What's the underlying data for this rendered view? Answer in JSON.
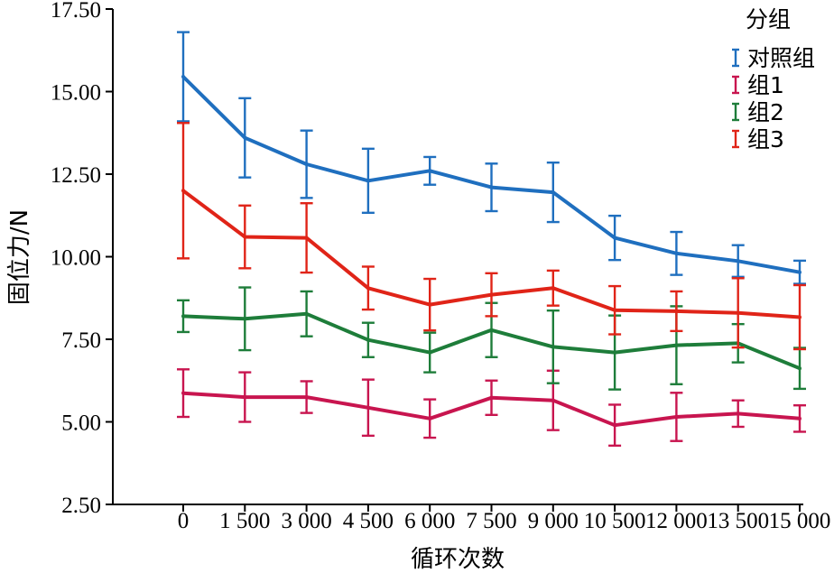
{
  "chart_data": {
    "type": "line",
    "title": "",
    "xlabel": "循环次数",
    "ylabel": "固位力/N",
    "x": [
      0,
      1500,
      3000,
      4500,
      6000,
      7500,
      9000,
      10500,
      12000,
      13500,
      15000
    ],
    "x_tick_labels": [
      "0",
      "1 500",
      "3 000",
      "4 500",
      "6 000",
      "7 500",
      "9 000",
      "10 500",
      "12 000",
      "13 500",
      "15 000"
    ],
    "y_ticks": [
      2.5,
      5.0,
      7.5,
      10.0,
      12.5,
      15.0,
      17.5
    ],
    "y_tick_labels": [
      "2.50",
      "5.00",
      "7.50",
      "10.00",
      "12.50",
      "15.00",
      "17.50"
    ],
    "ylim": [
      2.5,
      17.5
    ],
    "grid": false,
    "legend": {
      "title": "分组",
      "placement": "top-right"
    },
    "series": [
      {
        "name": "对照组",
        "color": "#1f6fbf",
        "values": [
          15.45,
          13.6,
          12.8,
          12.3,
          12.6,
          12.1,
          11.95,
          10.57,
          10.1,
          9.87,
          9.53
        ],
        "errors": [
          1.35,
          1.2,
          1.02,
          0.97,
          0.42,
          0.72,
          0.9,
          0.67,
          0.65,
          0.48,
          0.35
        ]
      },
      {
        "name": "组1",
        "color": "#c8154f",
        "values": [
          5.87,
          5.75,
          5.75,
          5.43,
          5.1,
          5.73,
          5.65,
          4.9,
          5.15,
          5.25,
          5.1
        ],
        "errors": [
          0.72,
          0.75,
          0.48,
          0.85,
          0.58,
          0.52,
          0.9,
          0.62,
          0.73,
          0.4,
          0.4
        ]
      },
      {
        "name": "组2",
        "color": "#1e7d3a",
        "values": [
          8.2,
          8.12,
          8.27,
          7.48,
          7.1,
          7.78,
          7.27,
          7.1,
          7.32,
          7.38,
          6.62
        ],
        "errors": [
          0.48,
          0.95,
          0.68,
          0.52,
          0.6,
          0.82,
          1.1,
          1.12,
          1.18,
          0.58,
          0.62
        ]
      },
      {
        "name": "组3",
        "color": "#e02418",
        "values": [
          12.0,
          10.6,
          10.57,
          9.05,
          8.55,
          8.85,
          9.05,
          8.38,
          8.35,
          8.3,
          8.17
        ],
        "errors": [
          2.05,
          0.95,
          1.05,
          0.65,
          0.78,
          0.65,
          0.53,
          0.73,
          0.6,
          1.05,
          0.97
        ]
      }
    ]
  }
}
